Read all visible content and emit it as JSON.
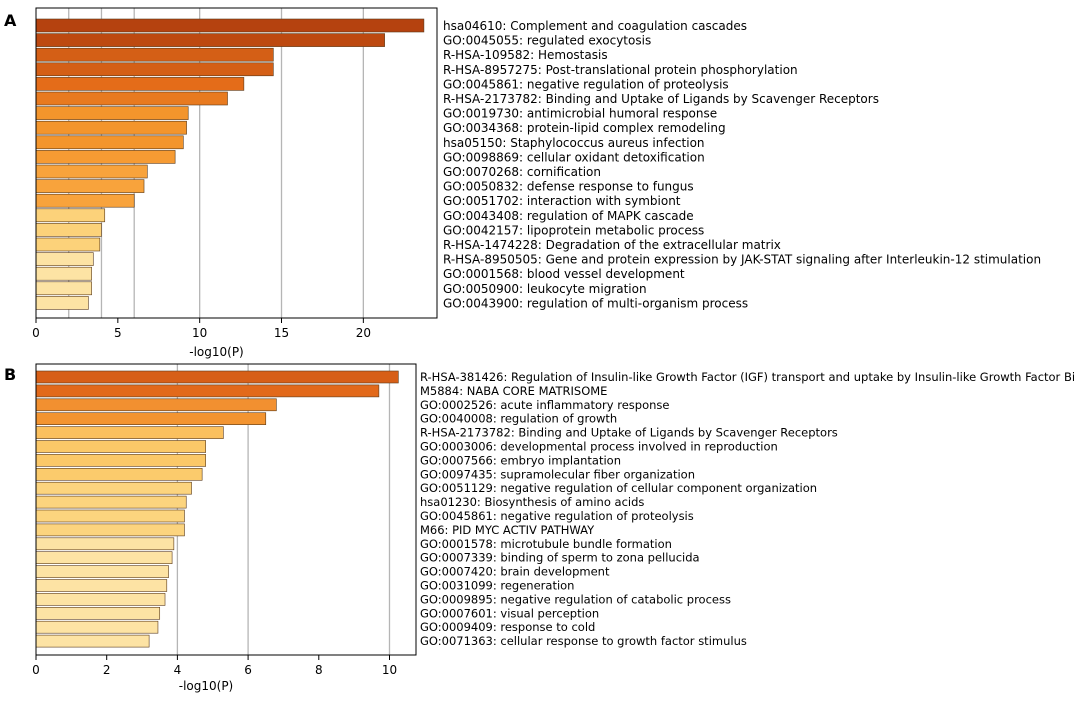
{
  "chart_data": [
    {
      "type": "bar",
      "panel_label": "A",
      "orientation": "horizontal",
      "xlabel": "-log10(P)",
      "xlim": [
        0,
        24.5
      ],
      "xticks": [
        "0",
        "5",
        "10",
        "15",
        "20"
      ],
      "xtick_values": [
        0,
        5,
        10,
        15,
        20
      ],
      "grid_lines": [
        2,
        4,
        6,
        10,
        15,
        20
      ],
      "categories": [
        "hsa04610: Complement and coagulation cascades",
        "GO:0045055: regulated exocytosis",
        "R-HSA-109582: Hemostasis",
        "R-HSA-8957275: Post-translational protein phosphorylation",
        "GO:0045861: negative regulation of proteolysis",
        "R-HSA-2173782: Binding and Uptake of Ligands by Scavenger Receptors",
        "GO:0019730: antimicrobial humoral response",
        "GO:0034368: protein-lipid complex remodeling",
        "hsa05150: Staphylococcus aureus infection",
        "GO:0098869: cellular oxidant detoxification",
        "GO:0070268: cornification",
        "GO:0050832: defense response to fungus",
        "GO:0051702: interaction with symbiont",
        "GO:0043408: regulation of MAPK cascade",
        "GO:0042157: lipoprotein metabolic process",
        "R-HSA-1474228: Degradation of the extracellular matrix",
        "R-HSA-8950505: Gene and protein expression by JAK-STAT signaling after Interleukin-12 stimulation",
        "GO:0001568: blood vessel development",
        "GO:0050900: leukocyte migration",
        "GO:0043900: regulation of multi-organism process"
      ],
      "values": [
        23.7,
        21.3,
        14.5,
        14.5,
        12.7,
        11.7,
        9.3,
        9.2,
        9.0,
        8.5,
        6.8,
        6.6,
        6.0,
        4.2,
        4.0,
        3.9,
        3.5,
        3.4,
        3.4,
        3.2
      ],
      "bar_colors": [
        "#b5420f",
        "#bd4910",
        "#d45f16",
        "#d45f16",
        "#e46c19",
        "#e87a1f",
        "#f3952c",
        "#f3952c",
        "#f3952c",
        "#f69b33",
        "#f8a33c",
        "#f8a33c",
        "#f8a33c",
        "#fcd27a",
        "#fcd27a",
        "#fcd27a",
        "#fde3a4",
        "#fde3a4",
        "#fde3a4",
        "#fde3a4"
      ]
    },
    {
      "type": "bar",
      "panel_label": "B",
      "orientation": "horizontal",
      "xlabel": "-log10(P)",
      "xlim": [
        0,
        10.75
      ],
      "xticks": [
        "0",
        "2",
        "4",
        "6",
        "8",
        "10"
      ],
      "xtick_values": [
        0,
        2,
        4,
        6,
        8,
        10
      ],
      "grid_lines": [
        4,
        6,
        10
      ],
      "categories": [
        "R-HSA-381426: Regulation of Insulin-like Growth Factor (IGF) transport and uptake by Insulin-like Growth Factor Bi",
        "M5884: NABA CORE MATRISOME",
        "GO:0002526: acute inflammatory response",
        "GO:0040008: regulation of growth",
        "R-HSA-2173782: Binding and Uptake of Ligands by Scavenger Receptors",
        "GO:0003006: developmental process involved in reproduction",
        "GO:0007566: embryo implantation",
        "GO:0097435: supramolecular fiber organization",
        "GO:0051129: negative regulation of cellular component organization",
        "hsa01230: Biosynthesis of amino acids",
        "GO:0045861: negative regulation of proteolysis",
        "M66: PID MYC ACTIV PATHWAY",
        "GO:0001578: microtubule bundle formation",
        "GO:0007339: binding of sperm to zona pellucida",
        "GO:0007420: brain development",
        "GO:0031099: regeneration",
        "GO:0009895: negative regulation of catabolic process",
        "GO:0007601: visual perception",
        "GO:0009409: response to cold",
        "GO:0071363: cellular response to growth factor stimulus"
      ],
      "values": [
        10.25,
        9.7,
        6.8,
        6.5,
        5.3,
        4.8,
        4.8,
        4.7,
        4.4,
        4.25,
        4.2,
        4.2,
        3.9,
        3.85,
        3.75,
        3.7,
        3.65,
        3.5,
        3.45,
        3.2
      ],
      "bar_colors": [
        "#d75f17",
        "#e2691a",
        "#f29030",
        "#f39430",
        "#fbc05e",
        "#fbc868",
        "#fbc868",
        "#fbcb6c",
        "#fcd47e",
        "#fcd47e",
        "#fcd47e",
        "#fcd47e",
        "#fde3a4",
        "#fde3a4",
        "#fde3a4",
        "#fde3a4",
        "#fde3a4",
        "#fde3a4",
        "#fde3a4",
        "#fde3a4"
      ]
    }
  ]
}
